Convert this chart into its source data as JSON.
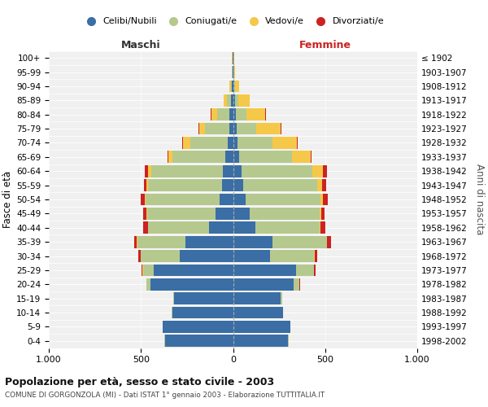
{
  "age_groups": [
    "0-4",
    "5-9",
    "10-14",
    "15-19",
    "20-24",
    "25-29",
    "30-34",
    "35-39",
    "40-44",
    "45-49",
    "50-54",
    "55-59",
    "60-64",
    "65-69",
    "70-74",
    "75-79",
    "80-84",
    "85-89",
    "90-94",
    "95-99",
    "100+"
  ],
  "birth_years": [
    "1998-2002",
    "1993-1997",
    "1988-1992",
    "1983-1987",
    "1978-1982",
    "1973-1977",
    "1968-1972",
    "1963-1967",
    "1958-1962",
    "1953-1957",
    "1948-1952",
    "1943-1947",
    "1938-1942",
    "1933-1937",
    "1928-1932",
    "1923-1927",
    "1918-1922",
    "1913-1917",
    "1908-1912",
    "1903-1907",
    "≤ 1902"
  ],
  "males": {
    "celibi": [
      370,
      380,
      330,
      320,
      450,
      430,
      290,
      260,
      130,
      95,
      75,
      60,
      55,
      40,
      30,
      22,
      18,
      10,
      5,
      3,
      2
    ],
    "coniugati": [
      2,
      2,
      3,
      5,
      20,
      60,
      210,
      260,
      330,
      370,
      400,
      400,
      390,
      290,
      200,
      130,
      70,
      25,
      8,
      3,
      2
    ],
    "vedovi": [
      0,
      0,
      0,
      0,
      0,
      1,
      1,
      2,
      2,
      3,
      5,
      8,
      15,
      20,
      40,
      30,
      30,
      15,
      5,
      2,
      1
    ],
    "divorziati": [
      0,
      0,
      0,
      0,
      2,
      5,
      15,
      15,
      25,
      20,
      20,
      15,
      20,
      5,
      8,
      5,
      2,
      0,
      0,
      0,
      0
    ]
  },
  "females": {
    "nubili": [
      300,
      310,
      270,
      260,
      330,
      340,
      200,
      215,
      120,
      90,
      70,
      55,
      45,
      35,
      25,
      18,
      15,
      10,
      5,
      3,
      2
    ],
    "coniugate": [
      2,
      2,
      3,
      5,
      30,
      100,
      240,
      295,
      350,
      380,
      405,
      400,
      385,
      285,
      190,
      110,
      60,
      20,
      8,
      3,
      2
    ],
    "vedove": [
      0,
      0,
      0,
      0,
      1,
      1,
      2,
      2,
      4,
      8,
      15,
      30,
      60,
      100,
      130,
      130,
      100,
      60,
      20,
      5,
      2
    ],
    "divorziate": [
      0,
      0,
      0,
      0,
      2,
      5,
      15,
      20,
      25,
      20,
      25,
      20,
      20,
      5,
      6,
      4,
      2,
      0,
      0,
      0,
      0
    ]
  },
  "colors": {
    "celibi": "#3a6ea5",
    "coniugati": "#b5c98e",
    "vedovi": "#f5c84a",
    "divorziati": "#cc2222"
  },
  "xlim": 1000,
  "title": "Popolazione per età, sesso e stato civile - 2003",
  "subtitle": "COMUNE DI GORGONZOLA (MI) - Dati ISTAT 1° gennaio 2003 - Elaborazione TUTTITALIA.IT",
  "ylabel_left": "Fasce di età",
  "ylabel_right": "Anni di nascita",
  "xlabel_left": "Maschi",
  "xlabel_right": "Femmine",
  "legend_labels": [
    "Celibi/Nubili",
    "Coniugati/e",
    "Vedovi/e",
    "Divorziati/e"
  ],
  "background_color": "#ffffff",
  "plot_bg": "#f0f0f0",
  "grid_color": "#cccccc"
}
